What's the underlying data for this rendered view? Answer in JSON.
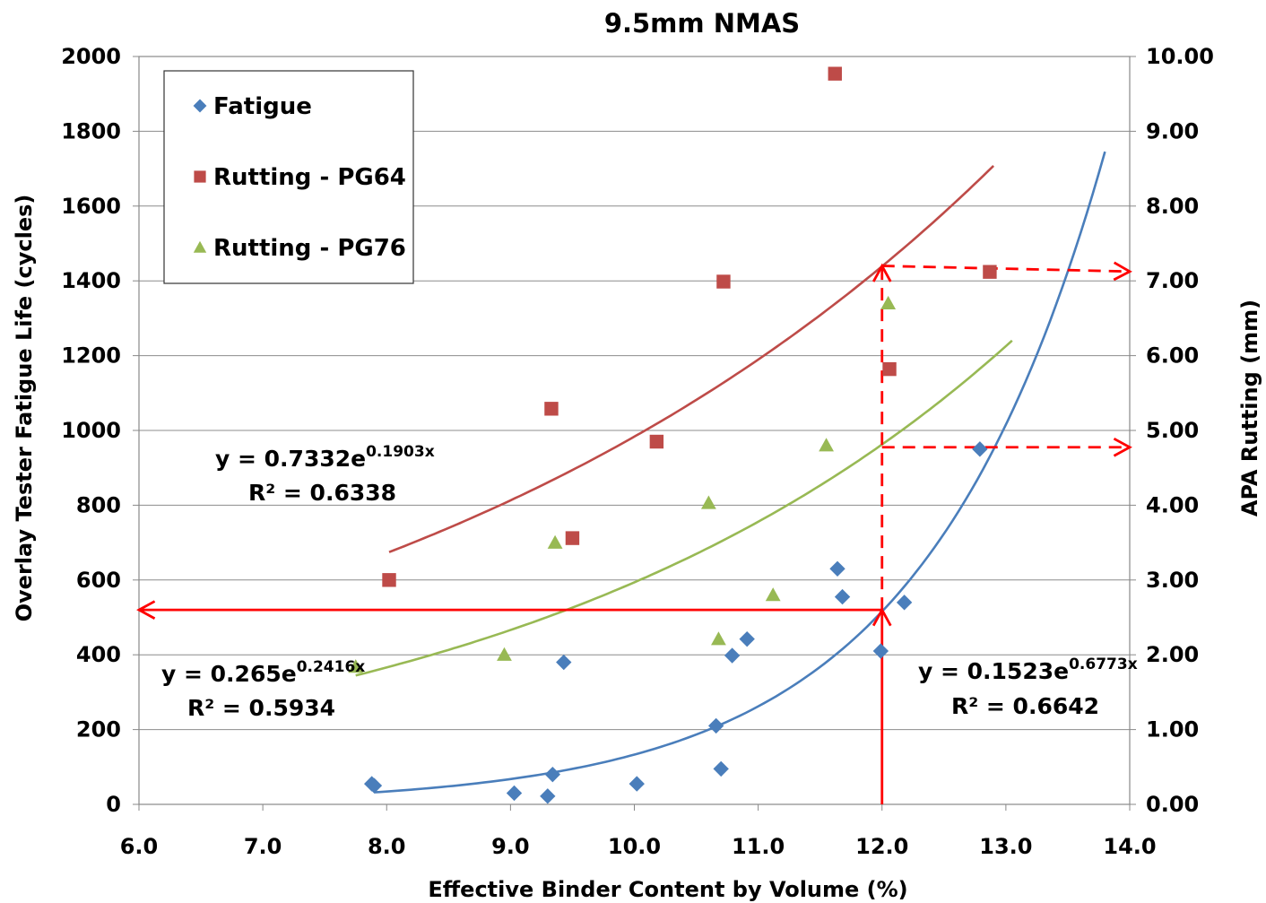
{
  "chart_data": {
    "type": "scatter",
    "title": "9.5mm NMAS",
    "xlabel": "Effective Binder Content by Volume (%)",
    "ylabel_left": "Overlay Tester Fatigue Life (cycles)",
    "ylabel_right": "APA Rutting (mm)",
    "xlim": [
      6.0,
      14.0
    ],
    "ylim_left": [
      0,
      2000
    ],
    "ylim_right": [
      0.0,
      10.0
    ],
    "x_ticks": [
      "6.0",
      "7.0",
      "8.0",
      "9.0",
      "10.0",
      "11.0",
      "12.0",
      "13.0",
      "14.0"
    ],
    "y_left_ticks": [
      "0",
      "200",
      "400",
      "600",
      "800",
      "1000",
      "1200",
      "1400",
      "1600",
      "1800",
      "2000"
    ],
    "y_right_ticks": [
      "0.00",
      "1.00",
      "2.00",
      "3.00",
      "4.00",
      "5.00",
      "6.00",
      "7.00",
      "8.00",
      "9.00",
      "10.00"
    ],
    "grid": "horizontal",
    "legend_position": "top-left",
    "series": [
      {
        "name": "Fatigue",
        "axis": "left",
        "marker": "diamond",
        "color": "#4a7ebb",
        "points": [
          [
            7.88,
            55
          ],
          [
            7.9,
            50
          ],
          [
            9.03,
            30
          ],
          [
            9.3,
            22
          ],
          [
            9.34,
            80
          ],
          [
            9.43,
            380
          ],
          [
            10.02,
            55
          ],
          [
            10.66,
            210
          ],
          [
            10.7,
            95
          ],
          [
            10.79,
            398
          ],
          [
            10.91,
            442
          ],
          [
            11.64,
            630
          ],
          [
            11.68,
            555
          ],
          [
            11.99,
            410
          ],
          [
            12.18,
            540
          ],
          [
            12.79,
            950
          ]
        ],
        "trendline": {
          "type": "exponential",
          "a": 0.1523,
          "b": 0.6773,
          "x_range": [
            7.9,
            13.8
          ]
        },
        "equation": {
          "label": "y = 0.1523e",
          "exponent": "0.6773x",
          "r2": "R² = 0.6642"
        }
      },
      {
        "name": "Rutting - PG64",
        "axis": "right",
        "marker": "square",
        "color": "#be4b48",
        "points": [
          [
            8.02,
            3.0
          ],
          [
            9.33,
            5.29
          ],
          [
            9.5,
            3.56
          ],
          [
            10.18,
            4.85
          ],
          [
            10.72,
            6.99
          ],
          [
            11.62,
            9.77
          ],
          [
            12.06,
            5.82
          ],
          [
            12.87,
            7.12
          ]
        ],
        "trendline": {
          "type": "exponential",
          "a": 0.7332,
          "b": 0.1903,
          "x_range": [
            8.02,
            12.9
          ]
        },
        "equation": {
          "label": "y = 0.7332e",
          "exponent": "0.1903x",
          "r2": "R² = 0.6338"
        }
      },
      {
        "name": "Rutting - PG76",
        "axis": "right",
        "marker": "triangle",
        "color": "#98b954",
        "points": [
          [
            7.75,
            1.84
          ],
          [
            8.95,
            2.0
          ],
          [
            9.36,
            3.5
          ],
          [
            10.6,
            4.03
          ],
          [
            10.68,
            2.21
          ],
          [
            11.12,
            2.8
          ],
          [
            11.55,
            4.8
          ],
          [
            12.05,
            6.7
          ]
        ],
        "trendline": {
          "type": "exponential",
          "a": 0.265,
          "b": 0.2416,
          "x_range": [
            7.75,
            13.05
          ]
        },
        "equation": {
          "label": "y = 0.265e",
          "exponent": "0.2416x",
          "r2": "R² = 0.5934"
        }
      }
    ],
    "annotations": {
      "color": "#ff0000",
      "solid_arrows": [
        {
          "from": [
            12.0,
            0
          ],
          "to": [
            12.0,
            520
          ],
          "axis": "left"
        },
        {
          "from": [
            12.0,
            520
          ],
          "to": [
            6.0,
            520
          ],
          "axis": "left"
        }
      ],
      "dashed_arrows": [
        {
          "from": [
            12.0,
            520
          ],
          "to": [
            12.0,
            1440
          ],
          "axis": "left"
        },
        {
          "from": [
            12.0,
            1440
          ],
          "to": [
            14.0,
            1425
          ],
          "axis": "left"
        },
        {
          "from": [
            12.0,
            955
          ],
          "to": [
            14.0,
            955
          ],
          "axis": "left"
        }
      ]
    }
  }
}
